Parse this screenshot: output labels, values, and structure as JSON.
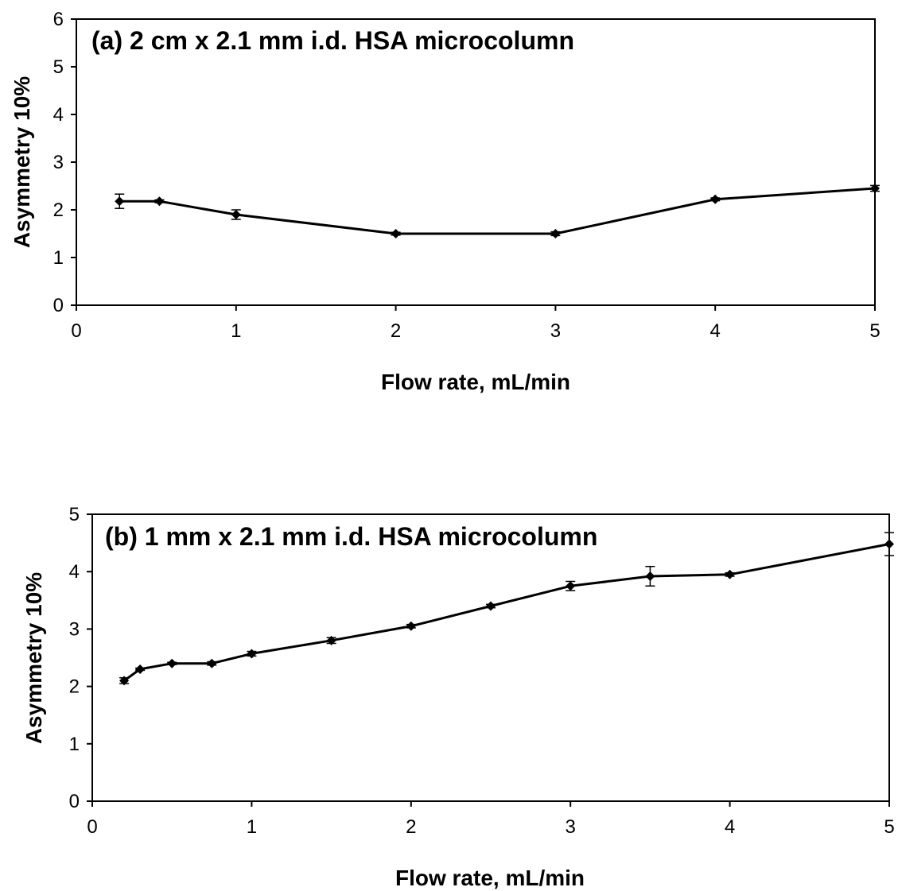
{
  "chart_data": [
    {
      "type": "line",
      "title": "(a) 2 cm x 2.1 mm i.d. HSA microcolumn",
      "xlabel": "Flow rate, mL/min",
      "ylabel": "Asymmetry 10%",
      "xlim": [
        0,
        5
      ],
      "ylim": [
        0,
        6
      ],
      "xticks": [
        0,
        1,
        2,
        3,
        4,
        5
      ],
      "yticks": [
        0,
        1,
        2,
        3,
        4,
        5,
        6
      ],
      "grid": false,
      "legend": "none",
      "color": "#000000",
      "marker": "diamond",
      "series": [
        {
          "x": [
            0.27,
            0.52,
            1.0,
            2.0,
            3.0,
            4.0,
            5.0
          ],
          "y": [
            2.18,
            2.18,
            1.9,
            1.5,
            1.5,
            2.22,
            2.45
          ],
          "error": [
            0.15,
            0.03,
            0.1,
            0.03,
            0.04,
            0.03,
            0.06
          ]
        }
      ]
    },
    {
      "type": "line",
      "title": "(b) 1 mm x 2.1 mm i.d. HSA microcolumn",
      "xlabel": "Flow rate, mL/min",
      "ylabel": "Asymmetry 10%",
      "xlim": [
        0,
        5
      ],
      "ylim": [
        0,
        5
      ],
      "xticks": [
        0,
        1,
        2,
        3,
        4,
        5
      ],
      "yticks": [
        0,
        1,
        2,
        3,
        4,
        5
      ],
      "grid": false,
      "legend": "none",
      "color": "#000000",
      "marker": "diamond",
      "series": [
        {
          "x": [
            0.2,
            0.3,
            0.5,
            0.75,
            1.0,
            1.5,
            2.0,
            2.5,
            3.0,
            3.5,
            4.0,
            5.0
          ],
          "y": [
            2.1,
            2.3,
            2.4,
            2.4,
            2.57,
            2.8,
            3.05,
            3.4,
            3.75,
            3.92,
            3.95,
            4.48
          ],
          "error": [
            0.05,
            0.02,
            0.02,
            0.03,
            0.04,
            0.05,
            0.03,
            0.03,
            0.08,
            0.17,
            0.03,
            0.2
          ]
        }
      ]
    }
  ]
}
